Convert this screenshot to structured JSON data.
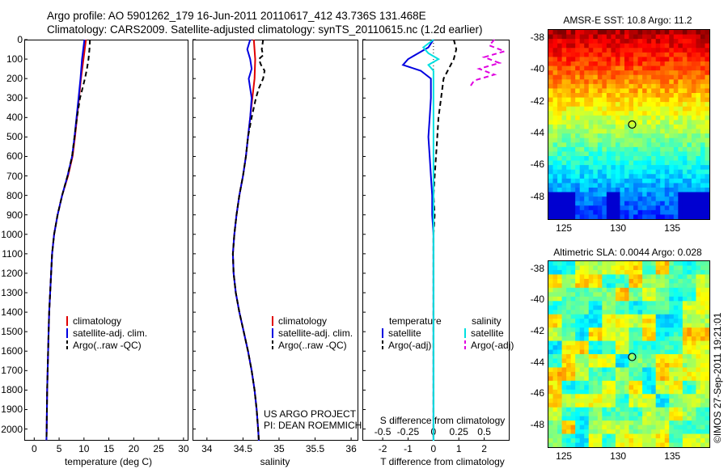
{
  "header": {
    "line1": "Argo profile: AO 5901262_179 16-Jun-2011 20110617_412 43.736S 131.468E",
    "line2": "Climatology: CARS2009. Satellite-adjusted climatology: synTS_20110615.nc (1.2d earlier)"
  },
  "colors": {
    "climatology": "#e00000",
    "satellite": "#0000e0",
    "argo": "#000000",
    "salinity_satellite": "#00e0e0",
    "salinity_argo": "#e000e0"
  },
  "chart_data": [
    {
      "type": "line",
      "xlabel": "temperature (deg C)",
      "xticks": [
        "0",
        "5",
        "10",
        "15",
        "20",
        "25",
        "30"
      ],
      "xlim": [
        -2,
        31
      ],
      "yticks": [
        "0",
        "100",
        "200",
        "300",
        "400",
        "500",
        "600",
        "700",
        "800",
        "900",
        "1000",
        "1100",
        "1200",
        "1300",
        "1400",
        "1500",
        "1600",
        "1700",
        "1800",
        "1900",
        "2000"
      ],
      "ylim": [
        2060,
        0
      ],
      "legend": [
        "climatology",
        "satellite-adj. clim.",
        "Argo(..raw -QC)"
      ],
      "series": [
        {
          "name": "climatology",
          "depth": [
            0,
            100,
            200,
            300,
            400,
            500,
            600,
            700,
            800,
            900,
            1000,
            1100,
            1200,
            1300,
            1400,
            1500,
            1600,
            1700,
            1800,
            1900,
            2000,
            2060
          ],
          "values": [
            10.4,
            9.9,
            9.4,
            9.0,
            8.6,
            8.2,
            7.7,
            6.8,
            5.6,
            4.7,
            4.0,
            3.6,
            3.4,
            3.2,
            3.0,
            2.9,
            2.8,
            2.7,
            2.6,
            2.55,
            2.5,
            2.45
          ]
        },
        {
          "name": "satellite-adj. clim.",
          "depth": [
            0,
            100,
            200,
            300,
            400,
            500,
            600,
            700,
            800,
            900,
            1000,
            1100,
            1200,
            1300,
            1400,
            1500,
            1600,
            1700,
            1800,
            1900,
            2000,
            2060
          ],
          "values": [
            10.1,
            9.6,
            9.3,
            8.9,
            8.5,
            8.1,
            7.6,
            6.7,
            5.6,
            4.7,
            4.0,
            3.6,
            3.4,
            3.2,
            3.0,
            2.9,
            2.8,
            2.7,
            2.6,
            2.55,
            2.5,
            2.45
          ]
        },
        {
          "name": "Argo(..raw -QC)",
          "depth": [
            0,
            50,
            100,
            150,
            200,
            250,
            300,
            400,
            500,
            600,
            700,
            800,
            900,
            1000,
            1100,
            1200,
            1300,
            1400,
            1500,
            1600,
            1700,
            1800,
            1900,
            2000,
            2060
          ],
          "values": [
            11.2,
            11.1,
            10.9,
            10.6,
            10.2,
            9.7,
            9.2,
            8.6,
            8.1,
            7.6,
            6.7,
            5.6,
            4.7,
            4.0,
            3.6,
            3.4,
            3.2,
            3.0,
            2.9,
            2.8,
            2.7,
            2.6,
            2.55,
            2.5,
            2.45
          ]
        }
      ],
      "annotation": []
    },
    {
      "type": "line",
      "xlabel": "salinity",
      "xticks": [
        "34",
        "34.5",
        "35",
        "35.5",
        "36"
      ],
      "xlim": [
        33.8,
        36.1
      ],
      "yticks": [],
      "ylim": [
        2060,
        0
      ],
      "legend": [
        "climatology",
        "satellite-adj. clim.",
        "Argo(..raw -QC)"
      ],
      "series": [
        {
          "name": "climatology",
          "depth": [
            0,
            100,
            200,
            300,
            400,
            500,
            600,
            700,
            800,
            900,
            1000,
            1100,
            1200,
            1300,
            1400,
            1500,
            1600,
            1700,
            1800,
            1900,
            2000,
            2060
          ],
          "values": [
            34.65,
            34.67,
            34.66,
            34.63,
            34.6,
            34.57,
            34.54,
            34.5,
            34.45,
            34.41,
            34.38,
            34.36,
            34.37,
            34.4,
            34.45,
            34.51,
            34.57,
            34.62,
            34.66,
            34.69,
            34.71,
            34.72
          ]
        },
        {
          "name": "satellite-adj. clim.",
          "depth": [
            0,
            50,
            100,
            150,
            200,
            250,
            300,
            400,
            500,
            600,
            700,
            800,
            900,
            1000,
            1100,
            1200,
            1300,
            1400,
            1500,
            1600,
            1700,
            1800,
            1900,
            2000,
            2060
          ],
          "values": [
            34.6,
            34.56,
            34.6,
            34.62,
            34.58,
            34.6,
            34.62,
            34.6,
            34.57,
            34.54,
            34.5,
            34.45,
            34.41,
            34.38,
            34.36,
            34.37,
            34.4,
            34.45,
            34.51,
            34.57,
            34.62,
            34.66,
            34.69,
            34.71,
            34.72
          ]
        },
        {
          "name": "Argo(..raw -QC)",
          "depth": [
            0,
            50,
            80,
            100,
            130,
            160,
            200,
            250,
            300,
            400,
            500,
            600,
            700,
            800,
            900,
            1000,
            1100,
            1200,
            1300,
            1400,
            1500,
            1600,
            1700,
            1800,
            1900,
            2000,
            2060
          ],
          "values": [
            34.78,
            34.76,
            34.78,
            34.72,
            34.75,
            34.8,
            34.78,
            34.72,
            34.68,
            34.62,
            34.57,
            34.54,
            34.5,
            34.45,
            34.41,
            34.38,
            34.36,
            34.37,
            34.4,
            34.45,
            34.51,
            34.57,
            34.62,
            34.66,
            34.69,
            34.71,
            34.72
          ]
        }
      ],
      "annotation": [
        "US ARGO PROJECT",
        "PI: DEAN ROEMMICH"
      ]
    },
    {
      "type": "line",
      "xlabel": "T difference from climatology",
      "xlabel_top": "S difference from climatology",
      "xticks": [
        "-2",
        "-1",
        "0",
        "1",
        "2"
      ],
      "xticks_top": [
        "-0.5",
        "-0.25",
        "0",
        "0.25",
        "0.5"
      ],
      "xlim": [
        -2.8,
        3.0
      ],
      "yticks": [],
      "ylim": [
        2060,
        0
      ],
      "legend_headers": [
        "temperature",
        "salinity"
      ],
      "legend": [
        "satellite",
        "Argo(-adj)",
        "satellite",
        "Argo(-adj)"
      ],
      "series": [
        {
          "name": "temperature satellite",
          "depth": [
            0,
            40,
            70,
            100,
            130,
            160,
            200,
            300,
            400,
            500,
            600,
            700,
            800,
            900,
            1000,
            1100,
            1200,
            1300,
            1400,
            1500,
            1600,
            1700,
            1800,
            1900,
            2000,
            2060
          ],
          "values": [
            0.0,
            -0.2,
            -0.6,
            -1.0,
            -1.2,
            -0.5,
            -0.1,
            -0.1,
            -0.15,
            -0.2,
            -0.15,
            -0.1,
            -0.05,
            -0.05,
            0.0,
            0.0,
            0.0,
            0.0,
            0.0,
            0.0,
            0.0,
            0.0,
            0.0,
            0.0,
            0.0,
            0.0
          ]
        },
        {
          "name": "temperature Argo(-adj)",
          "depth": [
            0,
            50,
            100,
            150,
            200,
            300,
            400,
            500,
            600,
            700,
            800,
            900,
            1000,
            1100,
            1200,
            1400,
            1600,
            1800,
            2000,
            2060
          ],
          "values": [
            0.8,
            0.9,
            0.8,
            0.6,
            0.4,
            0.3,
            0.2,
            0.15,
            0.1,
            0.05,
            0.0,
            0.05,
            0.0,
            0.0,
            0.0,
            0.0,
            0.0,
            0.0,
            0.0,
            0.0
          ]
        },
        {
          "name": "salinity satellite",
          "depth": [
            0,
            40,
            70,
            100,
            130,
            160,
            200,
            300,
            400,
            500,
            600,
            800,
            1000,
            1200,
            1400,
            1600,
            1800,
            2000,
            2060
          ],
          "values": [
            0.0,
            -0.1,
            -0.05,
            0.05,
            -0.05,
            0.0,
            0.0,
            0.0,
            0.0,
            0.0,
            0.0,
            0.0,
            0.0,
            0.0,
            0.0,
            0.0,
            0.0,
            0.0,
            0.0
          ]
        },
        {
          "name": "salinity Argo(-adj)",
          "depth": [
            0,
            30,
            60,
            90,
            120,
            150,
            180,
            210,
            250
          ],
          "values": [
            0.6,
            0.55,
            0.7,
            0.5,
            0.65,
            0.45,
            0.6,
            0.4,
            0.35
          ]
        }
      ],
      "annotation": []
    }
  ],
  "maps": [
    {
      "title": "AMSR-E SST: 10.8 Argo: 11.2",
      "yticks": [
        "-38",
        "-40",
        "-42",
        "-44",
        "-46",
        "-48"
      ],
      "xticks": [
        "125",
        "130",
        "135"
      ],
      "palette": "jet"
    },
    {
      "title": "Altimetric SLA: 0.0044 Argo: 0.028",
      "yticks": [
        "-38",
        "-40",
        "-42",
        "-44",
        "-46",
        "-48"
      ],
      "xticks": [
        "125",
        "130",
        "135"
      ],
      "palette": "green"
    }
  ],
  "stamp": "©IMOS 27-Sep-2011 19:21:01"
}
